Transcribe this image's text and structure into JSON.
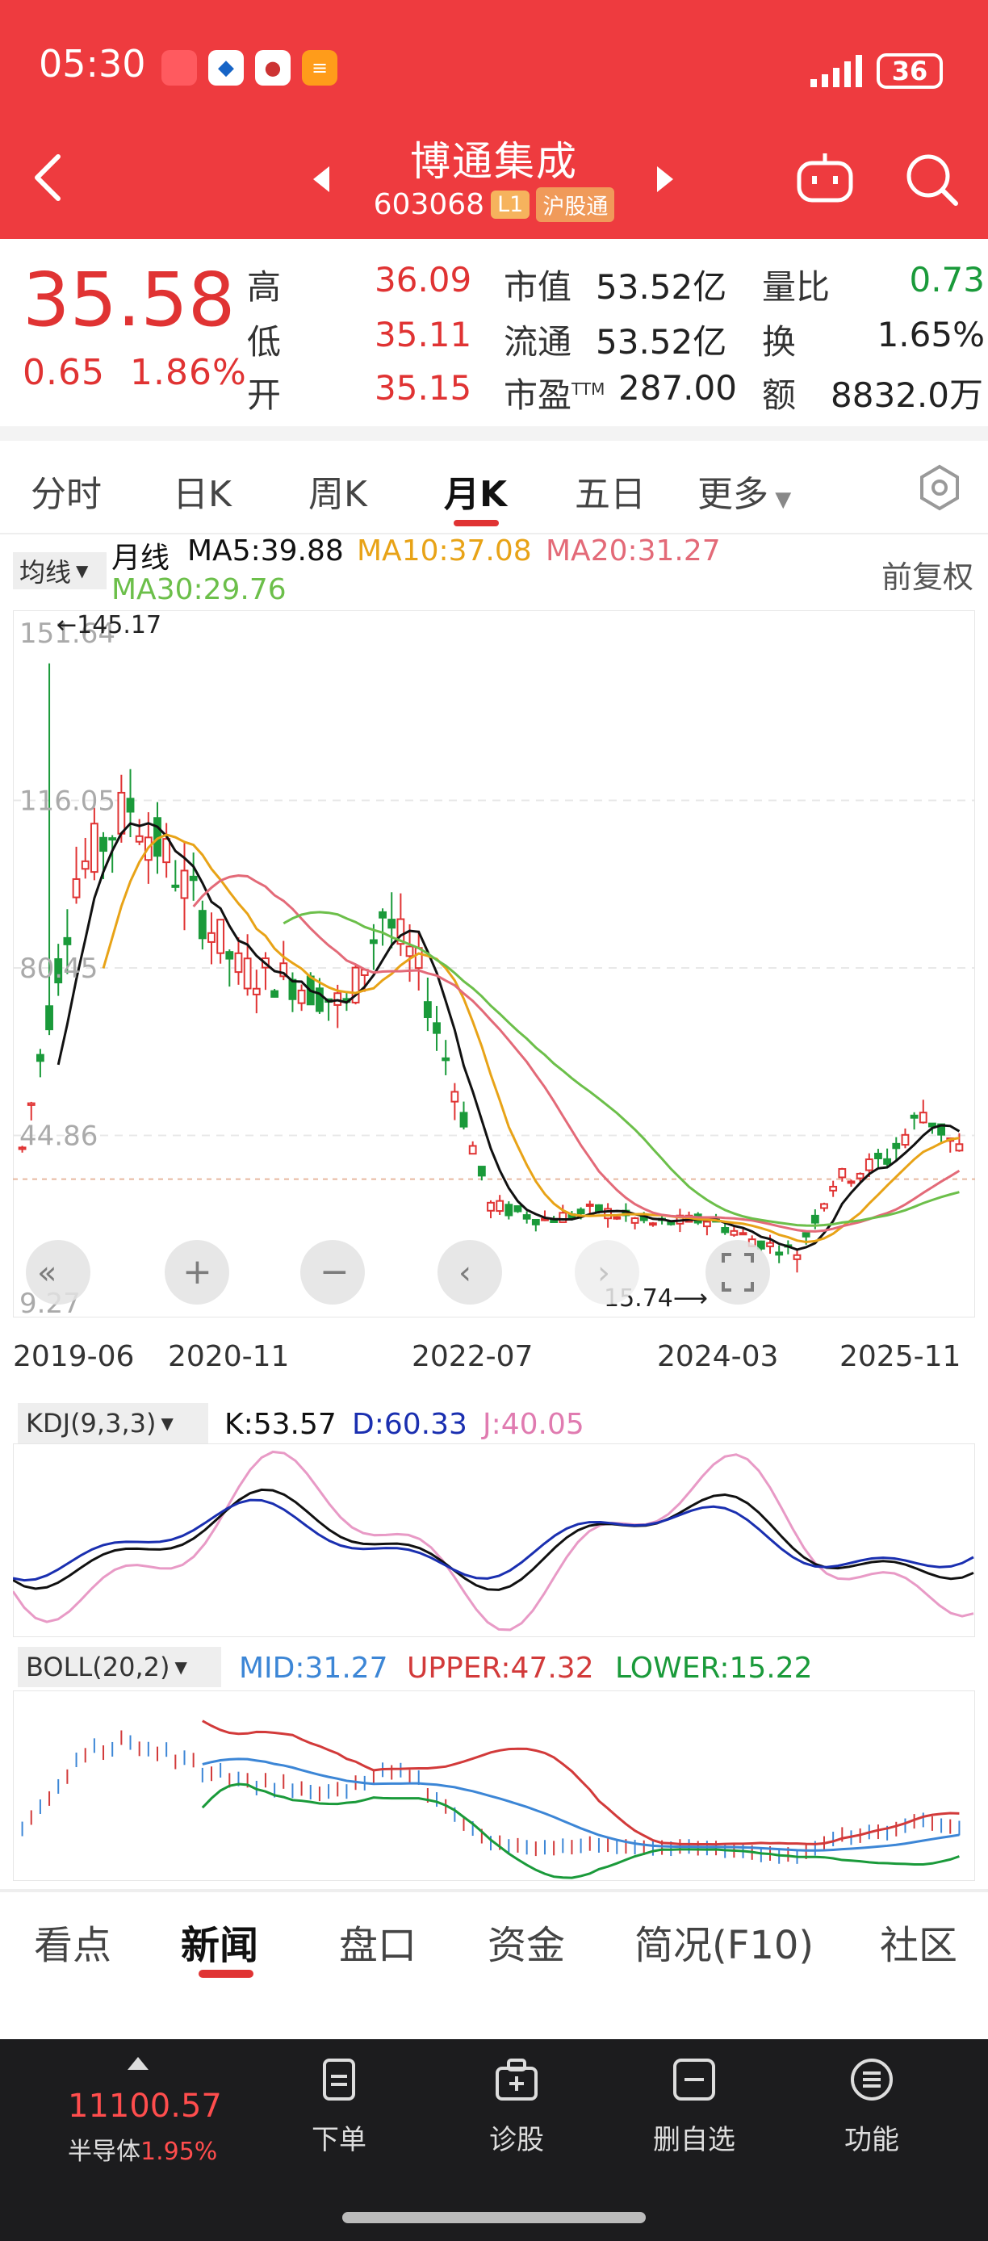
{
  "status": {
    "time": "05:30",
    "battery": "36"
  },
  "header": {
    "name": "博通集成",
    "code": "603068",
    "level_tag": "L1",
    "connect_tag": "沪股通"
  },
  "quote": {
    "price": "35.58",
    "change": "0.65",
    "change_pct": "1.86%",
    "rows": [
      {
        "l1": "高",
        "v1": "36.09",
        "l2": "市值",
        "v2": "53.52亿",
        "l3": "量比",
        "v3": "0.73"
      },
      {
        "l1": "低",
        "v1": "35.11",
        "l2": "流通",
        "v2": "53.52亿",
        "l3": "换",
        "v3": "1.65%"
      },
      {
        "l1": "开",
        "v1": "35.15",
        "l2": "市盈",
        "sup": "TTM",
        "v2": "287.00",
        "l3": "额",
        "v3": "8832.0万"
      }
    ]
  },
  "tabs": [
    "分时",
    "日K",
    "周K",
    "月K",
    "五日",
    "更多"
  ],
  "ma": {
    "selector": "均线",
    "period": "月线",
    "ma5": "MA5:39.88",
    "ma10": "MA10:37.08",
    "ma20": "MA20:31.27",
    "ma30": "MA30:29.76",
    "adjust": "前复权",
    "colors": {
      "ma5": "#111111",
      "ma10": "#e8a317",
      "ma20": "#e36a78",
      "ma30": "#6cbf4a",
      "up": "#e03333",
      "down": "#1a9a3a"
    }
  },
  "chart_data": {
    "type": "candlestick",
    "y_ticks": [
      "151.64",
      "116.05",
      "80.45",
      "44.86",
      "9.27"
    ],
    "ylim": [
      9.27,
      151.64
    ],
    "x_ticks": [
      "2019-06",
      "2020-11",
      "2022-07",
      "2024-03",
      "2025-11"
    ],
    "annotations": {
      "max": "145.17",
      "min": "15.74"
    }
  },
  "kdj": {
    "label": "KDJ(9,3,3)",
    "k": "K:53.57",
    "d": "D:60.33",
    "j": "J:40.05"
  },
  "boll": {
    "label": "BOLL(20,2)",
    "mid": "MID:31.27",
    "upper": "UPPER:47.32",
    "lower": "LOWER:15.22"
  },
  "bottom_tabs": [
    "看点",
    "新闻",
    "盘口",
    "资金",
    "简况(F10)",
    "社区"
  ],
  "bottom_bar": {
    "index_value": "11100.57",
    "index_name": "半导体",
    "index_pct": "1.95%",
    "items": [
      "下单",
      "诊股",
      "删自选",
      "功能"
    ]
  }
}
